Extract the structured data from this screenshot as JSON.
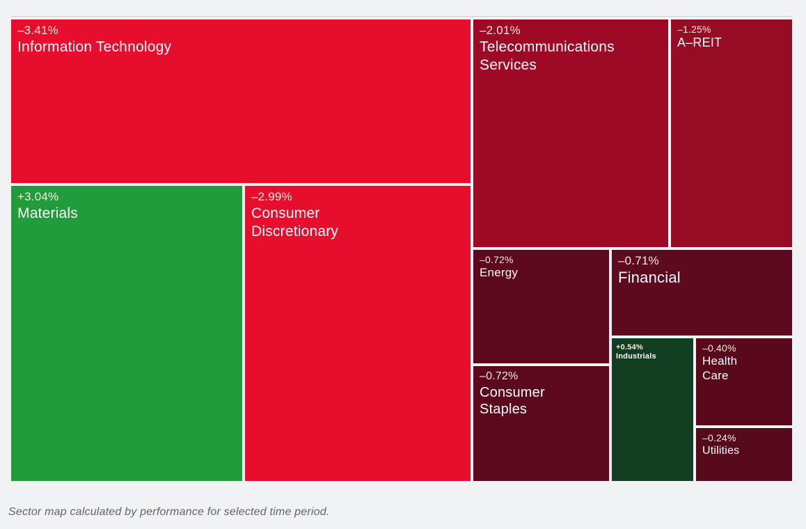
{
  "page": {
    "background_color": "#f1f2f4"
  },
  "treemap": {
    "top_border_color": "#f0bfc8",
    "gap_color": "#ffffff",
    "pct_text_color": "#f6eedd",
    "name_text_color": "#ffffff",
    "sectors": [
      {
        "id": "information-technology",
        "pct": "–3.41%",
        "name": "Information Technology",
        "color": "#e60d2d"
      },
      {
        "id": "materials",
        "pct": "+3.04%",
        "name": "Materials",
        "color": "#219c3d"
      },
      {
        "id": "consumer-discretionary",
        "pct": "–2.99%",
        "name": "Consumer\nDiscretionary",
        "color": "#e60d2d"
      },
      {
        "id": "telecommunications-services",
        "pct": "–2.01%",
        "name": "Telecommunications\nServices",
        "color": "#9e0a26"
      },
      {
        "id": "a-reit",
        "pct": "–1.25%",
        "name": "A–REIT",
        "color": "#970c25"
      },
      {
        "id": "energy",
        "pct": "–0.72%",
        "name": "Energy",
        "color": "#5d091d"
      },
      {
        "id": "consumer-staples",
        "pct": "–0.72%",
        "name": "Consumer\nStaples",
        "color": "#5d091d"
      },
      {
        "id": "financial",
        "pct": "–0.71%",
        "name": "Financial",
        "color": "#5e0a1e"
      },
      {
        "id": "industrials",
        "pct": "+0.54%",
        "name": "Industrials",
        "color": "#113d20"
      },
      {
        "id": "health-care",
        "pct": "–0.40%",
        "name": "Health\nCare",
        "color": "#5a091d"
      },
      {
        "id": "utilities",
        "pct": "–0.24%",
        "name": "Utilities",
        "color": "#570a1c"
      }
    ]
  },
  "caption": "Sector map calculated by performance for selected time period.",
  "chart_data": {
    "type": "heatmap",
    "subtype": "treemap-sector-performance-map",
    "title": "",
    "caption": "Sector map calculated by performance for selected time period.",
    "categories": [
      "Information Technology",
      "Materials",
      "Consumer Discretionary",
      "Telecommunications Services",
      "A-REIT",
      "Energy",
      "Consumer Staples",
      "Financial",
      "Industrials",
      "Health Care",
      "Utilities"
    ],
    "series": [
      {
        "name": "Performance %",
        "values": [
          -3.41,
          3.04,
          -2.99,
          -2.01,
          -1.25,
          -0.72,
          -0.72,
          -0.71,
          0.54,
          -0.4,
          -0.24
        ]
      }
    ],
    "layout_hints": {
      "tile_area_scales_with": "sector size",
      "color_rule": "green = positive, red = negative; brighter shade = larger magnitude, darkest near zero",
      "legend": "none",
      "axes": "none"
    }
  }
}
